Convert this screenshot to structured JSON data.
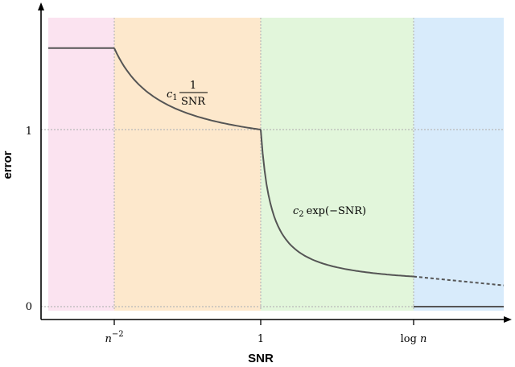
{
  "chart_data": {
    "type": "line",
    "title": "",
    "xlabel": "SNR",
    "ylabel": "error",
    "x_ticks": [
      {
        "id": "n2",
        "base": "n",
        "sup": "−2"
      },
      {
        "id": "one",
        "text": "1"
      },
      {
        "id": "logn",
        "prefix": "log",
        "var": "n"
      }
    ],
    "y_ticks": [
      {
        "value": 0,
        "label": "0"
      },
      {
        "value": 1,
        "label": "1"
      }
    ],
    "regions": [
      {
        "from": "start",
        "to": "n^-2",
        "color": "#fbe3f0"
      },
      {
        "from": "n^-2",
        "to": "1",
        "color": "#fde8cc"
      },
      {
        "from": "1",
        "to": "log n",
        "color": "#e2f6db"
      },
      {
        "from": "log n",
        "to": "end",
        "color": "#d8ebfb"
      }
    ],
    "series": [
      {
        "segment": "constant",
        "x_range": [
          "start",
          "n^-2"
        ],
        "y": 1.46
      },
      {
        "segment": "c1/SNR",
        "x_range": [
          "n^-2",
          "1"
        ],
        "y_start": 1.46,
        "y_end": 1.0
      },
      {
        "segment": "c2 exp(-SNR)",
        "x_range": [
          "1",
          "log n"
        ],
        "y_start": 1.0,
        "y_end": 0.17
      },
      {
        "segment": "continuation (dashed)",
        "x_range": [
          "log n",
          "end"
        ],
        "y_start": 0.17,
        "y_end": 0.12
      },
      {
        "segment": "zero",
        "x_range": [
          "log n",
          "end"
        ],
        "y": 0.0
      }
    ],
    "annotations": [
      {
        "id": "c1",
        "coef": "c",
        "sub": "1",
        "num": "1",
        "den": "SNR"
      },
      {
        "id": "c2",
        "coef": "c",
        "sub": "2",
        "expr": "exp(−SNR)"
      }
    ],
    "line_color": "#555555",
    "grid": false,
    "legend": "none"
  }
}
